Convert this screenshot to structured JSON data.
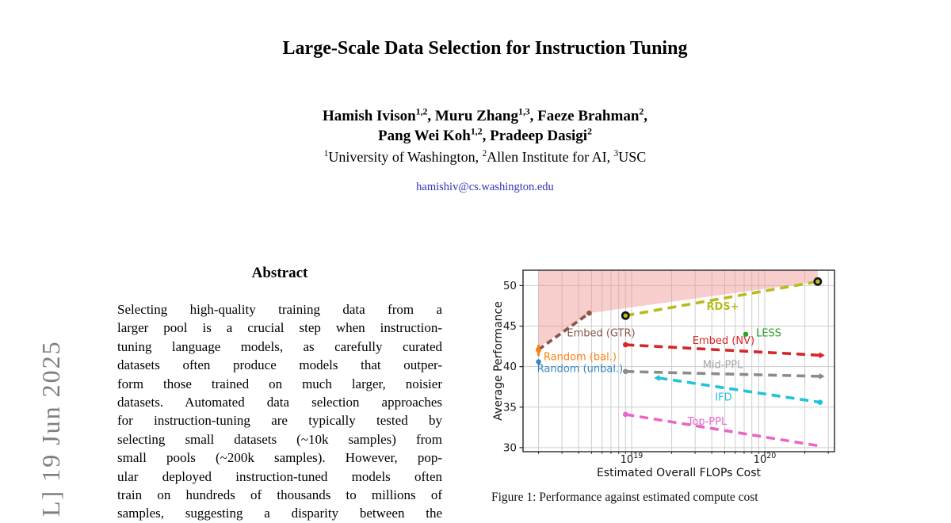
{
  "page": {
    "watermark": "L]  19 Jun 2025",
    "title": "Large-Scale Data Selection for Instruction Tuning",
    "authors_line1": [
      {
        "t": "Hamish Ivison"
      },
      {
        "sup": "1,2"
      },
      {
        "t": ", Muru Zhang"
      },
      {
        "sup": "1,3"
      },
      {
        "t": ", Faeze Brahman"
      },
      {
        "sup": "2"
      },
      {
        "t": ","
      }
    ],
    "authors_line2": [
      {
        "t": "Pang Wei Koh"
      },
      {
        "sup": "1,2"
      },
      {
        "t": ", Pradeep Dasigi"
      },
      {
        "sup": "2"
      }
    ],
    "affiliations": [
      {
        "sup": "1"
      },
      {
        "t": "University of Washington, "
      },
      {
        "sup": "2"
      },
      {
        "t": "Allen Institute for AI, "
      },
      {
        "sup": "3"
      },
      {
        "t": "USC"
      }
    ],
    "email": "hamishiv@cs.washington.edu",
    "abstract_heading": "Abstract",
    "abstract_lines": [
      "Selecting high-quality training data from a",
      "larger pool is a crucial step when instruction-",
      "tuning language models, as carefully curated",
      "datasets often produce models that outper-",
      "form those trained on much larger, noisier",
      "datasets. Automated data selection approaches",
      "for instruction-tuning are typically tested by",
      "selecting small datasets (~10k samples) from",
      "small pools (~200k samples). However, pop-",
      "ular deployed instruction-tuned models often",
      "train on hundreds of thousands to millions of",
      "samples, suggesting a disparity between the"
    ],
    "figure_caption": "Figure 1: Performance against estimated compute cost"
  },
  "chart_data": {
    "type": "line",
    "title": "",
    "xlabel": "Estimated Overall FLOPs Cost",
    "ylabel": "Average Performance",
    "xscale": "log",
    "xlim": [
      1.53e+18,
      3.34e+20
    ],
    "ylim": [
      29.5,
      51.9
    ],
    "yticks": [
      30,
      35,
      40,
      45,
      50
    ],
    "xticks": [
      {
        "value": 1e+19,
        "base": "10",
        "exp": "19"
      },
      {
        "value": 1e+20,
        "base": "10",
        "exp": "20"
      }
    ],
    "grid": true,
    "grid_color": "#cdcdcd",
    "region": {
      "name": "pareto-region",
      "color": "#f0938f",
      "opacity": 0.45,
      "points": [
        [
          2e+18,
          51.9
        ],
        [
          2e+18,
          42.4
        ],
        [
          4.8e+18,
          46.6
        ],
        [
          2.5e+20,
          50.5
        ],
        [
          2.5e+20,
          51.9
        ]
      ]
    },
    "series": [
      {
        "name": "Embed (GTR)",
        "color": "#8c564b",
        "x": [
          2e+18,
          4.8e+18
        ],
        "y": [
          42.1,
          46.6
        ],
        "dash": "8 5",
        "width": 3.8,
        "start_marker": "dot",
        "end_marker": "dot",
        "label": {
          "text": "Embed (GTR)",
          "x": 5.9e+18,
          "y": 44.1
        }
      },
      {
        "name": "RDS+",
        "color": "#b9ba1f",
        "x": [
          9e+18,
          2.5e+20
        ],
        "y": [
          46.3,
          50.5
        ],
        "dash": "11 7",
        "width": 3.6,
        "start_marker": "ring",
        "end_marker": "ring",
        "label": {
          "text": "RDS+",
          "x": 4.84e+19,
          "y": 47.4,
          "bold": true
        }
      },
      {
        "name": "Embed (NV)",
        "color": "#d62728",
        "x": [
          9e+18,
          2.6e+20
        ],
        "y": [
          42.7,
          41.4
        ],
        "dash": "11 7",
        "width": 3.6,
        "start_marker": "dot",
        "end_marker": "arrow-right",
        "label": {
          "text": "Embed (NV)",
          "x": 4.9e+19,
          "y": 43.2
        }
      },
      {
        "name": "Mid-PPL",
        "color": "#8b8b8b",
        "x": [
          9e+18,
          2.6e+20
        ],
        "y": [
          39.4,
          38.8
        ],
        "dash": "11 7",
        "width": 3.6,
        "start_marker": "dot",
        "end_marker": "arrow-right",
        "label": {
          "text": "Mid-PPL",
          "x": 4.84e+19,
          "y": 40.2,
          "color": "#a6a6a6"
        }
      },
      {
        "name": "IFD",
        "color": "#1fc3dd",
        "x": [
          1.6e+19,
          2.6e+20
        ],
        "y": [
          38.6,
          35.6
        ],
        "dash": "11 7",
        "width": 3.6,
        "start_marker": "arrow-left",
        "end_marker": "dot",
        "label": {
          "text": "IFD",
          "x": 4.9e+19,
          "y": 36.2
        }
      },
      {
        "name": "Top-PPL",
        "color": "#e866c6",
        "x": [
          9e+18,
          2.6e+20
        ],
        "y": [
          34.1,
          30.2
        ],
        "dash": "11 7",
        "width": 3.6,
        "start_marker": "dot",
        "end_marker": "none",
        "label": {
          "text": "Top-PPL",
          "x": 3.7e+19,
          "y": 33.2
        }
      }
    ],
    "points": [
      {
        "name": "Random (bal.)",
        "color": "#ff7f0e",
        "x": 2e+18,
        "y": 42.0,
        "err": 0.7,
        "label": {
          "text": "Random (bal.)",
          "x": 4.1e+18,
          "y": 41.2
        }
      },
      {
        "name": "Random (unbal.)",
        "color": "#3585c5",
        "x": 2e+18,
        "y": 40.6,
        "err": 0.3,
        "label": {
          "text": "Random (unbal.)",
          "x": 4.1e+18,
          "y": 39.7
        }
      },
      {
        "name": "LESS",
        "color": "#2ca02c",
        "x": 7.2e+19,
        "y": 44.0,
        "label": {
          "text": "LESS",
          "x": 1.07e+20,
          "y": 44.1
        }
      }
    ]
  }
}
